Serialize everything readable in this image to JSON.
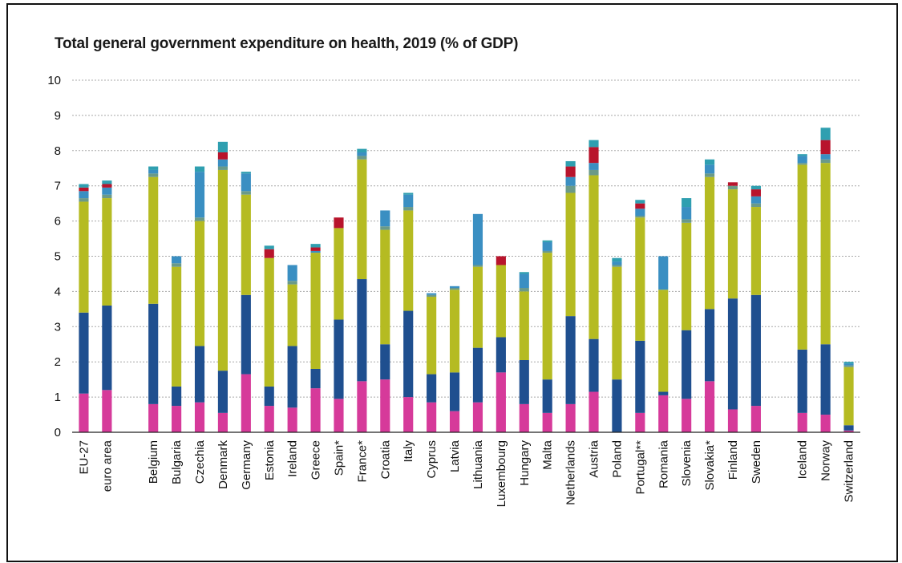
{
  "chart_data": {
    "type": "bar",
    "stacked": true,
    "title": "Total general government expenditure on health, 2019 (% of GDP)",
    "xlabel": "",
    "ylabel": "",
    "ylim": [
      0,
      10
    ],
    "yticks": [
      "0",
      "1",
      "2",
      "3",
      "4",
      "5",
      "6",
      "7",
      "8",
      "9",
      "10"
    ],
    "grid": true,
    "legend": "none",
    "colors": [
      "#d63a9a",
      "#1f4f8f",
      "#b5bb22",
      "#6b9a88",
      "#3a8fc2",
      "#b8142c",
      "#2f9fb0"
    ],
    "categories": [
      "EU-27",
      "euro area",
      "Belgium",
      "Bulgaria",
      "Czechia",
      "Denmark",
      "Germany",
      "Estonia",
      "Ireland",
      "Greece",
      "Spain*",
      "France*",
      "Croatia",
      "Italy",
      "Cyprus",
      "Latvia",
      "Lithuania",
      "Luxembourg",
      "Hungary",
      "Malta",
      "Netherlands",
      "Austria",
      "Poland",
      "Portugal**",
      "Romania",
      "Slovenia",
      "Slovakia*",
      "Finland",
      "Sweden",
      "Iceland",
      "Norway",
      "Switzerland"
    ],
    "gap_after": [
      1,
      28
    ],
    "series": [
      {
        "values": [
          1.1,
          1.2,
          0.8,
          0.75,
          0.85,
          0.55,
          1.65,
          0.75,
          0.7,
          1.25,
          0.95,
          1.45,
          1.5,
          1.0,
          0.85,
          0.6,
          0.85,
          1.7,
          0.8,
          0.55,
          0.8,
          1.15,
          0.0,
          0.55,
          1.05,
          0.95,
          1.45,
          0.65,
          0.75,
          0.55,
          0.5,
          0.05
        ]
      },
      {
        "values": [
          2.3,
          2.4,
          2.85,
          0.55,
          1.6,
          1.2,
          2.25,
          0.55,
          1.75,
          0.55,
          2.25,
          2.9,
          1.0,
          2.45,
          0.8,
          1.1,
          1.55,
          1.0,
          1.25,
          0.95,
          2.5,
          1.5,
          1.5,
          2.05,
          0.1,
          1.95,
          2.05,
          3.15,
          3.15,
          1.8,
          2.0,
          0.15
        ]
      },
      {
        "values": [
          3.15,
          3.05,
          3.6,
          3.4,
          3.55,
          5.7,
          2.85,
          3.65,
          1.75,
          3.3,
          2.6,
          3.4,
          3.25,
          2.85,
          2.2,
          2.35,
          2.3,
          2.05,
          1.95,
          3.6,
          3.5,
          4.65,
          3.2,
          3.5,
          2.9,
          3.05,
          3.75,
          3.1,
          2.5,
          5.25,
          5.15,
          1.65
        ]
      },
      {
        "values": [
          0.1,
          0.1,
          0.1,
          0.1,
          0.1,
          0.1,
          0.1,
          0.0,
          0.1,
          0.0,
          0.0,
          0.1,
          0.1,
          0.1,
          0.05,
          0.05,
          0.05,
          0.0,
          0.1,
          0.05,
          0.2,
          0.15,
          0.05,
          0.05,
          0.0,
          0.1,
          0.1,
          0.1,
          0.1,
          0.05,
          0.1,
          0.05
        ]
      },
      {
        "values": [
          0.2,
          0.2,
          0.1,
          0.2,
          1.3,
          0.2,
          0.5,
          0.0,
          0.45,
          0.05,
          0.0,
          0.1,
          0.45,
          0.35,
          0.05,
          0.05,
          1.45,
          0.0,
          0.4,
          0.25,
          0.25,
          0.2,
          0.1,
          0.2,
          0.95,
          0.35,
          0.25,
          0.0,
          0.2,
          0.2,
          0.15,
          0.05
        ]
      },
      {
        "values": [
          0.1,
          0.1,
          0.0,
          0.0,
          0.0,
          0.2,
          0.0,
          0.25,
          0.0,
          0.1,
          0.3,
          0.0,
          0.0,
          0.0,
          0.0,
          0.0,
          0.0,
          0.25,
          0.0,
          0.0,
          0.3,
          0.45,
          0.0,
          0.15,
          0.0,
          0.0,
          0.0,
          0.1,
          0.2,
          0.0,
          0.4,
          0.0
        ]
      },
      {
        "values": [
          0.1,
          0.1,
          0.1,
          0.0,
          0.15,
          0.3,
          0.05,
          0.1,
          0.0,
          0.1,
          0.0,
          0.1,
          0.0,
          0.05,
          0.0,
          0.0,
          0.0,
          0.0,
          0.05,
          0.05,
          0.15,
          0.2,
          0.1,
          0.1,
          0.0,
          0.25,
          0.15,
          0.0,
          0.1,
          0.05,
          0.35,
          0.05
        ]
      }
    ]
  }
}
